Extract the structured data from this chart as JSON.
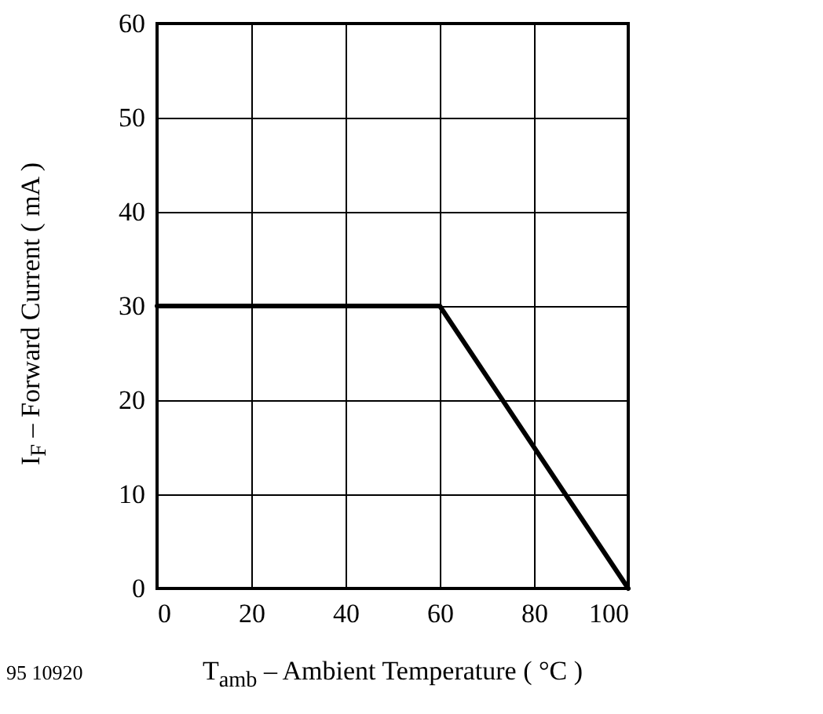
{
  "chart_data": {
    "type": "line",
    "xlabel": "T$_{amb}$ – Ambient Temperature ( °C )",
    "ylabel": "I$_{F}$ – Forward Current ( mA )",
    "annotations": [
      "95 10920"
    ],
    "x": [
      0,
      60,
      100
    ],
    "series": [
      {
        "color": "#000000",
        "values": [
          30,
          30,
          0
        ]
      }
    ],
    "xlim": [
      0,
      100
    ],
    "xticks": [
      0,
      20,
      40,
      60,
      80,
      100
    ],
    "ylim": [
      0,
      60
    ],
    "yticks": [
      0,
      10,
      20,
      30,
      40,
      50,
      60
    ],
    "grid": true,
    "marker": "none",
    "line_style": "solid"
  }
}
